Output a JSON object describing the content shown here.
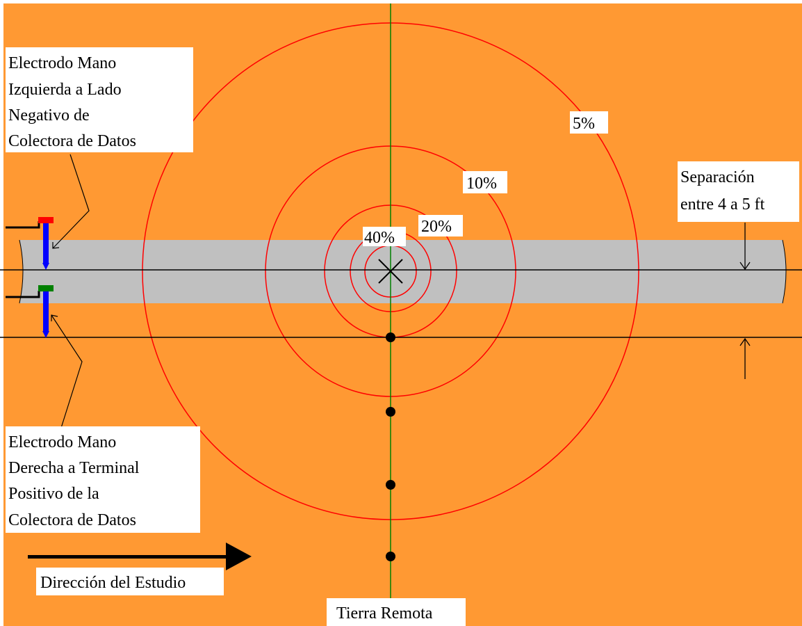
{
  "colors": {
    "background": "#FF9933",
    "pipe": "#C0C0C0",
    "rings": "#FF0000",
    "center_line": "#008000",
    "lines": "#000000",
    "label_box": "#FFFFFF",
    "electrode_body": "#0000FF",
    "negative_cap": "#FF0000",
    "positive_cap": "#008000"
  },
  "labels": {
    "left_electrode": [
      "Electrodo Mano",
      "Izquierda a Lado",
      "Negativo de",
      "Colectora de Datos"
    ],
    "right_electrode": [
      "Electrodo Mano",
      "Derecha a Terminal",
      "Positivo de la",
      "Colectora de Datos"
    ],
    "spacing": [
      "Separación",
      "entre 4 a 5 ft"
    ],
    "direction": "Dirección del Estudio",
    "remote_earth": "Tierra Remota"
  },
  "rings": [
    {
      "label": "5%"
    },
    {
      "label": "10%"
    },
    {
      "label": "20%"
    },
    {
      "label": "40%"
    }
  ],
  "icons": [
    "center-x-icon",
    "direction-arrow-icon",
    "spacing-arrow-down-icon",
    "spacing-arrow-up-icon"
  ]
}
